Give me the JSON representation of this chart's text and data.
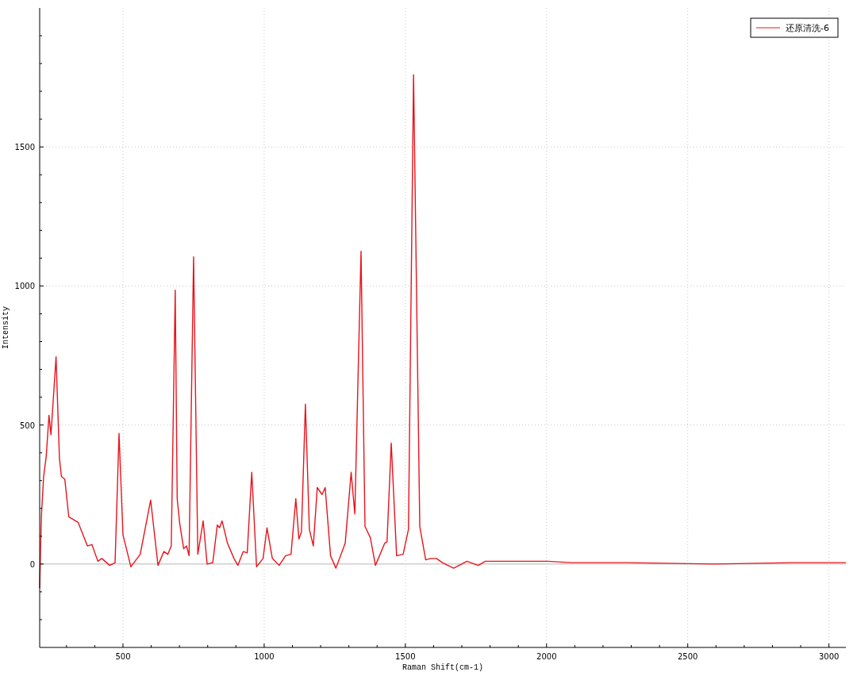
{
  "chart_data": {
    "type": "line",
    "xlabel": "Raman Shift(cm-1)",
    "ylabel": "Intensity",
    "xlim": [
      205,
      3060
    ],
    "ylim": [
      -300,
      2000
    ],
    "xticks": [
      {
        "value": 300,
        "label": null
      },
      {
        "value": 400,
        "label": null
      },
      500,
      {
        "value": 600,
        "label": null
      },
      {
        "value": 700,
        "label": null
      },
      {
        "value": 800,
        "label": null
      },
      {
        "value": 900,
        "label": null
      },
      1000,
      {
        "value": 1100,
        "label": null
      },
      {
        "value": 1200,
        "label": null
      },
      {
        "value": 1300,
        "label": null
      },
      {
        "value": 1400,
        "label": null
      },
      1500,
      {
        "value": 1600,
        "label": null
      },
      {
        "value": 1700,
        "label": null
      },
      {
        "value": 1800,
        "label": null
      },
      {
        "value": 1900,
        "label": null
      },
      2000,
      {
        "value": 2100,
        "label": null
      },
      {
        "value": 2200,
        "label": null
      },
      {
        "value": 2300,
        "label": null
      },
      {
        "value": 2400,
        "label": null
      },
      2500,
      {
        "value": 2600,
        "label": null
      },
      {
        "value": 2700,
        "label": null
      },
      {
        "value": 2800,
        "label": null
      },
      {
        "value": 2900,
        "label": null
      },
      3000
    ],
    "yticks": [
      {
        "value": -200,
        "label": null
      },
      {
        "value": -100,
        "label": null
      },
      0,
      {
        "value": 100,
        "label": null
      },
      {
        "value": 200,
        "label": null
      },
      {
        "value": 300,
        "label": null
      },
      {
        "value": 400,
        "label": null
      },
      500,
      {
        "value": 600,
        "label": null
      },
      {
        "value": 700,
        "label": null
      },
      {
        "value": 800,
        "label": null
      },
      {
        "value": 900,
        "label": null
      },
      1000,
      {
        "value": 1100,
        "label": null
      },
      {
        "value": 1200,
        "label": null
      },
      {
        "value": 1300,
        "label": null
      },
      {
        "value": 1400,
        "label": null
      },
      1500,
      {
        "value": 1600,
        "label": null
      },
      {
        "value": 1700,
        "label": null
      },
      {
        "value": 1800,
        "label": null
      },
      {
        "value": 1900,
        "label": null
      }
    ],
    "grid": true,
    "legend": "top right",
    "marker": "none",
    "line_style": "solid",
    "ref_lines": [
      {
        "axis": "y",
        "value": 0,
        "color": "#d0d0d0"
      }
    ],
    "series": [
      {
        "name": "还原清洗-6",
        "color": "#e8141c",
        "x": [
          205,
          211,
          219,
          228,
          238,
          245,
          263,
          275,
          282,
          294,
          308,
          341,
          374,
          390,
          411,
          425,
          453,
          472,
          486,
          500,
          528,
          561,
          598,
          624,
          645,
          659,
          671,
          685,
          692,
          701,
          715,
          725,
          734,
          750,
          765,
          784,
          798,
          818,
          834,
          842,
          851,
          870,
          893,
          907,
          926,
          940,
          956,
          973,
          996,
          1010,
          1029,
          1053,
          1076,
          1095,
          1112,
          1123,
          1132,
          1146,
          1160,
          1174,
          1188,
          1205,
          1216,
          1235,
          1254,
          1287,
          1308,
          1321,
          1343,
          1357,
          1376,
          1394,
          1427,
          1435,
          1450,
          1469,
          1492,
          1511,
          1529,
          1551,
          1572,
          1590,
          1610,
          1631,
          1671,
          1718,
          1758,
          1783,
          1862,
          2003,
          2087,
          2284,
          2593,
          2874,
          3059
        ],
        "values": [
          -85,
          170,
          315,
          385,
          535,
          465,
          745,
          380,
          315,
          305,
          170,
          150,
          65,
          70,
          10,
          20,
          -5,
          5,
          470,
          105,
          -10,
          35,
          230,
          -5,
          45,
          35,
          65,
          985,
          235,
          145,
          55,
          65,
          30,
          1105,
          35,
          155,
          0,
          5,
          140,
          130,
          155,
          75,
          20,
          -5,
          45,
          40,
          330,
          -10,
          20,
          130,
          20,
          -5,
          30,
          35,
          235,
          90,
          115,
          575,
          125,
          65,
          275,
          250,
          275,
          30,
          -15,
          75,
          330,
          180,
          1125,
          135,
          95,
          -5,
          75,
          80,
          435,
          30,
          35,
          125,
          1760,
          135,
          15,
          20,
          20,
          5,
          -15,
          10,
          -5,
          10,
          10,
          10,
          5,
          5,
          0,
          5,
          5
        ]
      }
    ]
  }
}
